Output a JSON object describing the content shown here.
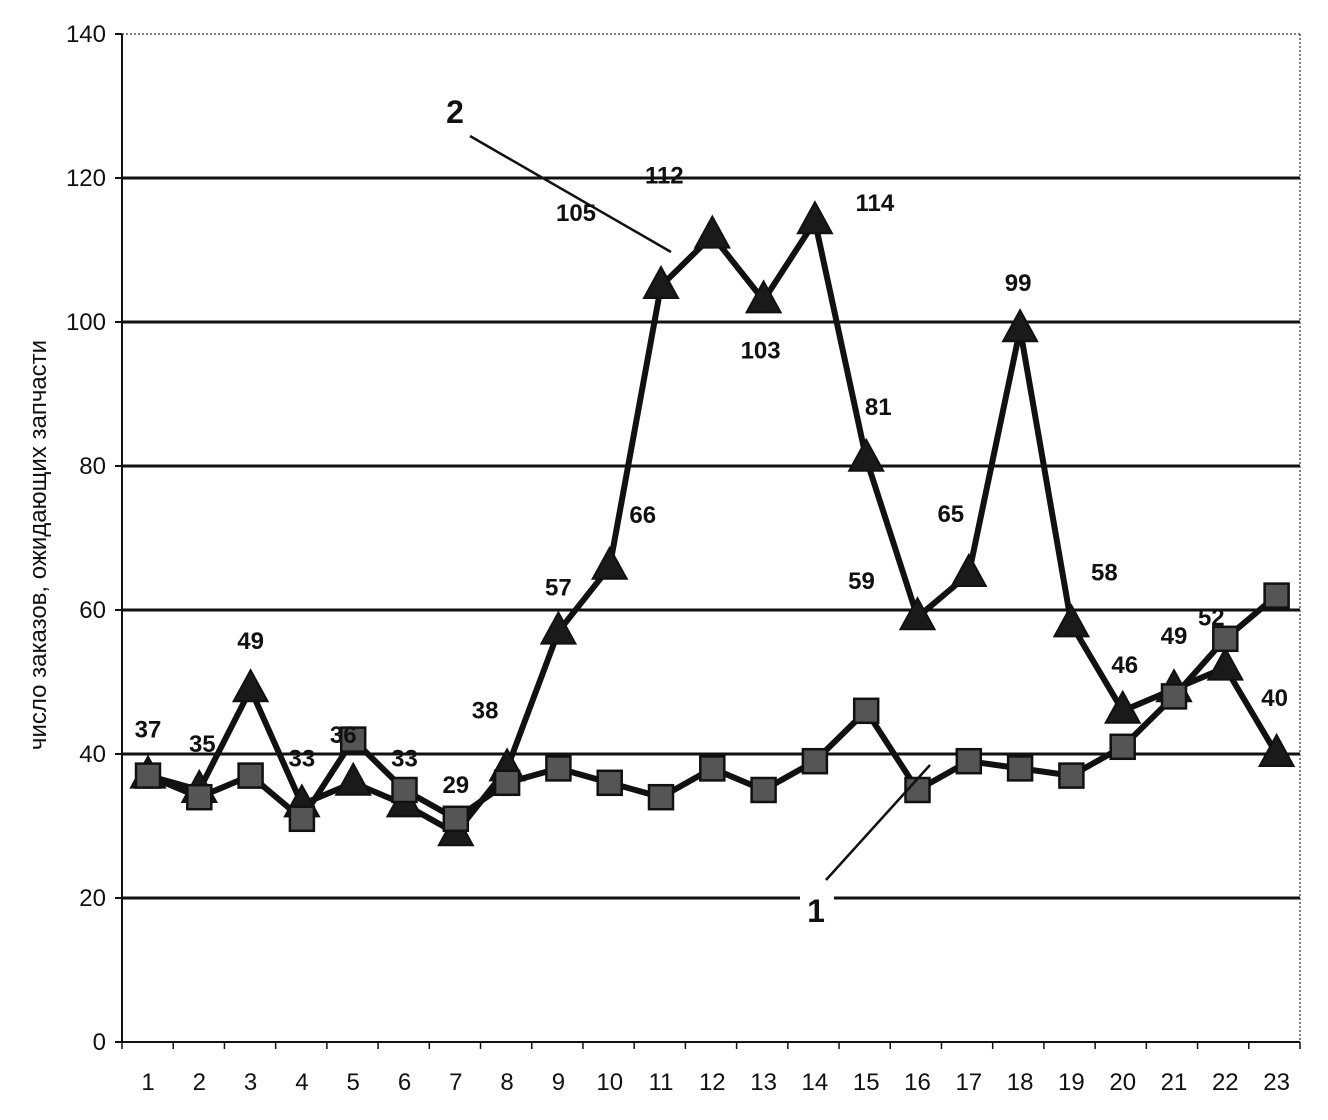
{
  "chart_data": {
    "type": "line",
    "title": "",
    "xlabel": "",
    "ylabel": "число заказов, ожидающих запчасти",
    "ylim": [
      0,
      140
    ],
    "y_ticks": [
      0,
      20,
      40,
      60,
      80,
      100,
      120,
      140
    ],
    "grid": "horizontal",
    "categories": [
      "1",
      "2",
      "3",
      "4",
      "5",
      "6",
      "7",
      "8",
      "9",
      "10",
      "11",
      "12",
      "13",
      "14",
      "15",
      "16",
      "17",
      "18",
      "19",
      "20",
      "21",
      "22",
      "23"
    ],
    "series": [
      {
        "name": "1",
        "marker": "square",
        "values": [
          37,
          34,
          37,
          31,
          42,
          35,
          31,
          36,
          38,
          36,
          34,
          38,
          35,
          39,
          46,
          35,
          39,
          38,
          37,
          41,
          48,
          56,
          62
        ]
      },
      {
        "name": "2",
        "marker": "triangle",
        "values": [
          37,
          35,
          49,
          33,
          36,
          33,
          29,
          38,
          57,
          66,
          105,
          112,
          103,
          114,
          81,
          59,
          65,
          99,
          58,
          46,
          49,
          52,
          40
        ]
      }
    ],
    "data_labels": [
      "37",
      "35",
      "49",
      "33",
      "36",
      "33",
      "29",
      "38",
      "57",
      "66",
      "105",
      "112",
      "103",
      "114",
      "81",
      "59",
      "65",
      "99",
      "58",
      "46",
      "49",
      "52",
      "40"
    ],
    "callouts": [
      "1",
      "2"
    ],
    "colors": {
      "line": "#111111",
      "marker_square": "#555555",
      "marker_triangle": "#1a1a1a",
      "grid": "#111111"
    }
  }
}
